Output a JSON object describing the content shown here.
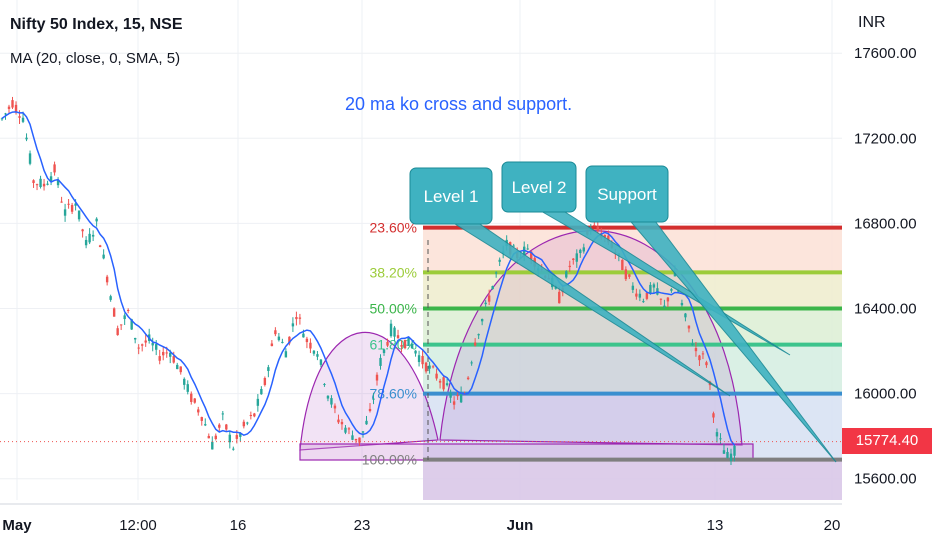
{
  "header": {
    "title": "Nifty 50 Index, 15, NSE",
    "indicator": "MA (20, close, 0, SMA, 5)",
    "note": "20 ma ko cross and support."
  },
  "chart_data": {
    "type": "candlestick",
    "currency": "INR",
    "y_range": [
      15500,
      17850
    ],
    "y_ticks": [
      {
        "label": "17600.00",
        "value": 17600
      },
      {
        "label": "17200.00",
        "value": 17200
      },
      {
        "label": "16800.00",
        "value": 16800
      },
      {
        "label": "16400.00",
        "value": 16400
      },
      {
        "label": "16000.00",
        "value": 16000
      },
      {
        "label": "15600.00",
        "value": 15600
      }
    ],
    "x_ticks": [
      {
        "label": "May",
        "bold": true
      },
      {
        "label": "12:00",
        "bold": false
      },
      {
        "label": "16",
        "bold": false
      },
      {
        "label": "23",
        "bold": false
      },
      {
        "label": "Jun",
        "bold": true
      },
      {
        "label": "13",
        "bold": false
      },
      {
        "label": "20",
        "bold": false
      }
    ],
    "price_path": [
      17290,
      17370,
      17300,
      17000,
      16980,
      17050,
      16850,
      16900,
      16700,
      16800,
      16550,
      16300,
      16380,
      16220,
      16250,
      16180,
      16200,
      16100,
      15980,
      15900,
      15760,
      15880,
      15750,
      15840,
      15900,
      16050,
      16300,
      16200,
      16380,
      16250,
      16200,
      16000,
      15880,
      15820,
      15780,
      15900,
      16150,
      16300,
      16250,
      16230,
      16150,
      16100,
      16050,
      15960,
      16000,
      16250,
      16400,
      16560,
      16700,
      16650,
      16680,
      16600,
      16550,
      16450,
      16600,
      16650,
      16790,
      16750,
      16700,
      16600,
      16500,
      16450,
      16500,
      16400,
      16550,
      16350,
      16200,
      16150,
      15800,
      15700,
      15740
    ],
    "last_price": {
      "label": "15774.40",
      "value": 15774.4
    },
    "fib_levels": [
      {
        "label": "23.60%",
        "value": 16780,
        "color": "#d32f2f",
        "fill": "#fbe1d6"
      },
      {
        "label": "38.20%",
        "value": 16570,
        "color": "#9ccc3a",
        "fill": "#efeccd"
      },
      {
        "label": "50.00%",
        "value": 16400,
        "color": "#3bb54a",
        "fill": "#dcefd4"
      },
      {
        "label": "61.80%",
        "value": 16230,
        "color": "#3cc48c",
        "fill": "#d3ede1"
      },
      {
        "label": "78.60%",
        "value": 16000,
        "color": "#3a8fcf",
        "fill": "#d6e1f2"
      },
      {
        "label": "100.00%",
        "value": 15690,
        "color": "#7f7f7f",
        "fill": "#d9c8e8"
      }
    ],
    "callouts": [
      {
        "label": "Level 1"
      },
      {
        "label": "Level 2"
      },
      {
        "label": "Support"
      }
    ]
  },
  "colors": {
    "up": "#26a69a",
    "down": "#ef5350",
    "ma": "#2962ff",
    "arc": "#9c27b0",
    "callout_fill": "#3fb2c1",
    "callout_stroke": "#1a8a96",
    "note": "#2962ff"
  }
}
